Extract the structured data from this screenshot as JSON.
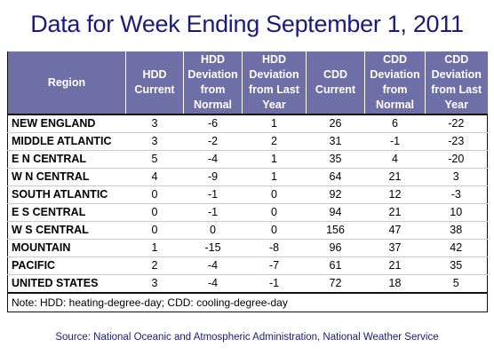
{
  "title": "Data for Week Ending September 1, 2011",
  "headers": [
    "Region",
    "HDD Current",
    "HDD Deviation from Normal",
    "HDD Deviation from Last Year",
    "CDD Current",
    "CDD Deviation from Normal",
    "CDD Deviation from Last Year"
  ],
  "rows": [
    [
      "NEW ENGLAND",
      "3",
      "-6",
      "1",
      "26",
      "6",
      "-22"
    ],
    [
      "MIDDLE ATLANTIC",
      "3",
      "-2",
      "2",
      "31",
      "-1",
      "-23"
    ],
    [
      "E N CENTRAL",
      "5",
      "-4",
      "1",
      "35",
      "4",
      "-20"
    ],
    [
      "W N CENTRAL",
      "4",
      "-9",
      "1",
      "64",
      "21",
      "3"
    ],
    [
      "SOUTH ATLANTIC",
      "0",
      "-1",
      "0",
      "92",
      "12",
      "-3"
    ],
    [
      "E S CENTRAL",
      "0",
      "-1",
      "0",
      "94",
      "21",
      "10"
    ],
    [
      "W S CENTRAL",
      "0",
      "0",
      "0",
      "156",
      "47",
      "38"
    ],
    [
      "MOUNTAIN",
      "1",
      "-15",
      "-8",
      "96",
      "37",
      "42"
    ],
    [
      "PACIFIC",
      "2",
      "-4",
      "-7",
      "61",
      "21",
      "35"
    ],
    [
      "UNITED STATES",
      "3",
      "-4",
      "-1",
      "72",
      "18",
      "5"
    ]
  ],
  "note": "Note: HDD: heating-degree-day; CDD: cooling-degree-day",
  "source": "Source:  National Oceanic and Atmospheric Administration, National Weather Service"
}
